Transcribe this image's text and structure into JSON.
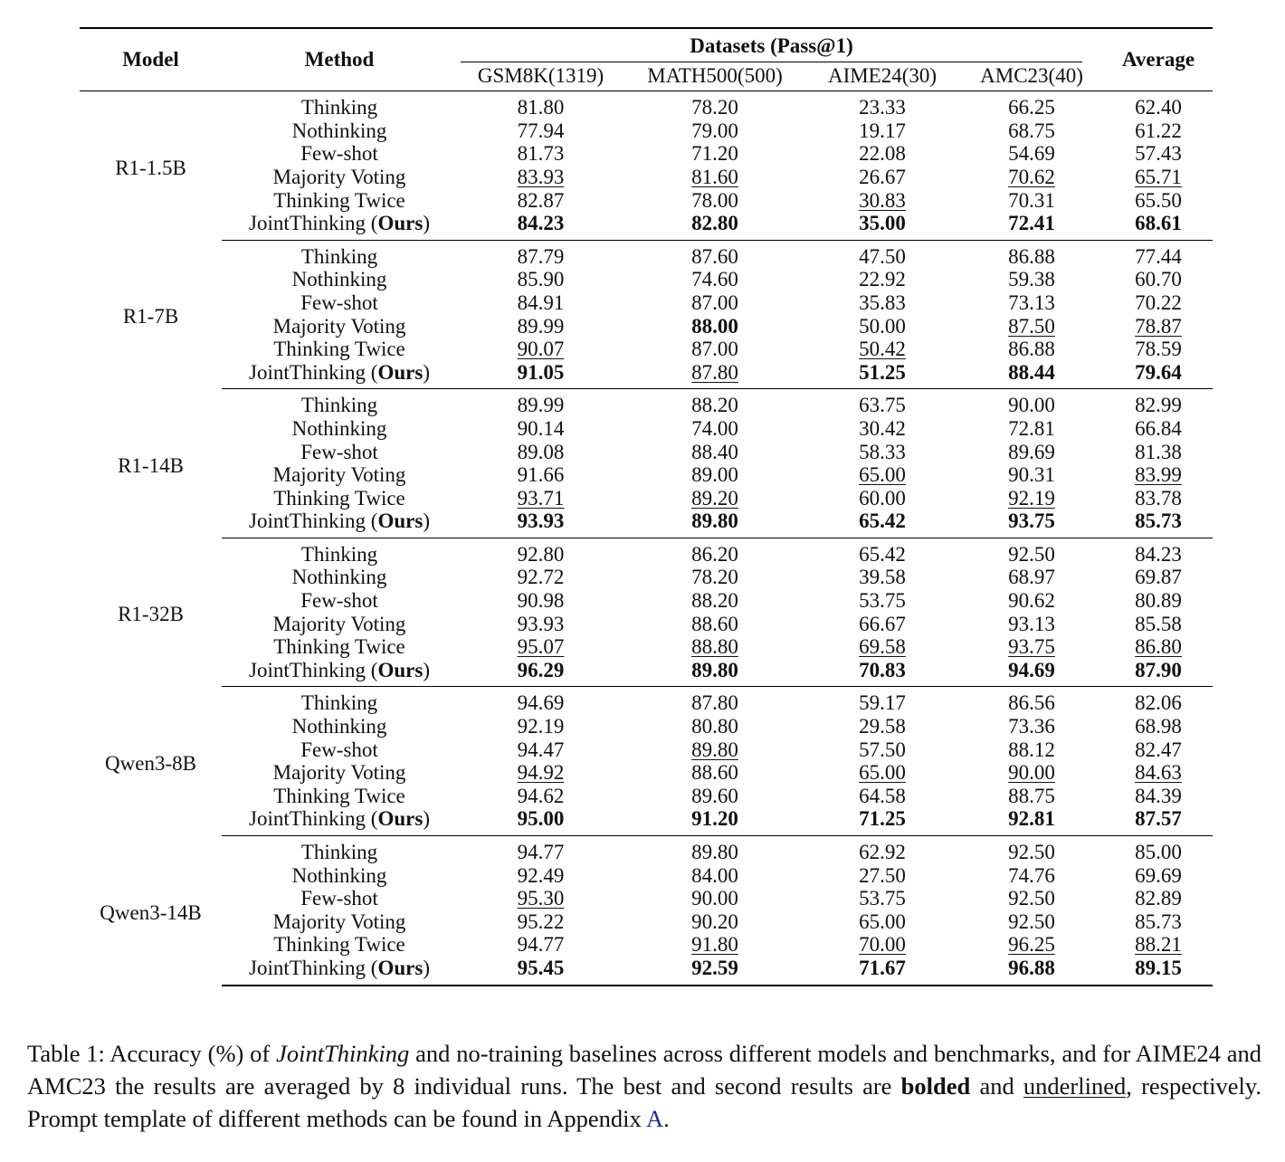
{
  "table": {
    "header": {
      "model": "Model",
      "method": "Method",
      "datasets": "Datasets (Pass@1)",
      "columns": [
        "GSM8K(1319)",
        "MATH500(500)",
        "AIME24(30)",
        "AMC23(40)"
      ],
      "average": "Average"
    },
    "groups": [
      {
        "model": "R1-1.5B",
        "rows": [
          {
            "method": "Thinking",
            "values": [
              "81.80",
              "78.20",
              "23.33",
              "66.25",
              "62.40"
            ]
          },
          {
            "method": "Nothinking",
            "values": [
              "77.94",
              "79.00",
              "19.17",
              "68.75",
              "61.22"
            ]
          },
          {
            "method": "Few-shot",
            "values": [
              "81.73",
              "71.20",
              "22.08",
              "54.69",
              "57.43"
            ]
          },
          {
            "method": "Majority Voting",
            "values": [
              {
                "text": "83.93",
                "style": "underline"
              },
              {
                "text": "81.60",
                "style": "underline"
              },
              "26.67",
              {
                "text": "70.62",
                "style": "underline"
              },
              {
                "text": "65.71",
                "style": "underline"
              }
            ]
          },
          {
            "method": "Thinking Twice",
            "values": [
              "82.87",
              "78.00",
              {
                "text": "30.83",
                "style": "underline"
              },
              "70.31",
              "65.50"
            ]
          },
          {
            "method": [
              "JointThinking (",
              {
                "text": "Ours",
                "style": "bold"
              },
              ")"
            ],
            "values": [
              {
                "text": "84.23",
                "style": "bold"
              },
              {
                "text": "82.80",
                "style": "bold"
              },
              {
                "text": "35.00",
                "style": "bold"
              },
              {
                "text": "72.41",
                "style": "bold"
              },
              {
                "text": "68.61",
                "style": "bold"
              }
            ]
          }
        ]
      },
      {
        "model": "R1-7B",
        "rows": [
          {
            "method": "Thinking",
            "values": [
              "87.79",
              "87.60",
              "47.50",
              "86.88",
              "77.44"
            ]
          },
          {
            "method": "Nothinking",
            "values": [
              "85.90",
              "74.60",
              "22.92",
              "59.38",
              "60.70"
            ]
          },
          {
            "method": "Few-shot",
            "values": [
              "84.91",
              "87.00",
              "35.83",
              "73.13",
              "70.22"
            ]
          },
          {
            "method": "Majority Voting",
            "values": [
              "89.99",
              {
                "text": "88.00",
                "style": "bold"
              },
              "50.00",
              {
                "text": "87.50",
                "style": "underline"
              },
              {
                "text": "78.87",
                "style": "underline"
              }
            ]
          },
          {
            "method": "Thinking Twice",
            "values": [
              {
                "text": "90.07",
                "style": "underline"
              },
              "87.00",
              {
                "text": "50.42",
                "style": "underline"
              },
              "86.88",
              "78.59"
            ]
          },
          {
            "method": [
              "JointThinking (",
              {
                "text": "Ours",
                "style": "bold"
              },
              ")"
            ],
            "values": [
              {
                "text": "91.05",
                "style": "bold"
              },
              {
                "text": "87.80",
                "style": "underline"
              },
              {
                "text": "51.25",
                "style": "bold"
              },
              {
                "text": "88.44",
                "style": "bold"
              },
              {
                "text": "79.64",
                "style": "bold"
              }
            ]
          }
        ]
      },
      {
        "model": "R1-14B",
        "rows": [
          {
            "method": "Thinking",
            "values": [
              "89.99",
              "88.20",
              "63.75",
              "90.00",
              "82.99"
            ]
          },
          {
            "method": "Nothinking",
            "values": [
              "90.14",
              "74.00",
              "30.42",
              "72.81",
              "66.84"
            ]
          },
          {
            "method": "Few-shot",
            "values": [
              "89.08",
              "88.40",
              "58.33",
              "89.69",
              "81.38"
            ]
          },
          {
            "method": "Majority Voting",
            "values": [
              "91.66",
              "89.00",
              {
                "text": "65.00",
                "style": "underline"
              },
              "90.31",
              {
                "text": "83.99",
                "style": "underline"
              }
            ]
          },
          {
            "method": "Thinking Twice",
            "values": [
              {
                "text": "93.71",
                "style": "underline"
              },
              {
                "text": "89.20",
                "style": "underline"
              },
              "60.00",
              {
                "text": "92.19",
                "style": "underline"
              },
              "83.78"
            ]
          },
          {
            "method": [
              "JointThinking (",
              {
                "text": "Ours",
                "style": "bold"
              },
              ")"
            ],
            "values": [
              {
                "text": "93.93",
                "style": "bold"
              },
              {
                "text": "89.80",
                "style": "bold"
              },
              {
                "text": "65.42",
                "style": "bold"
              },
              {
                "text": "93.75",
                "style": "bold"
              },
              {
                "text": "85.73",
                "style": "bold"
              }
            ]
          }
        ]
      },
      {
        "model": "R1-32B",
        "rows": [
          {
            "method": "Thinking",
            "values": [
              "92.80",
              "86.20",
              "65.42",
              "92.50",
              "84.23"
            ]
          },
          {
            "method": "Nothinking",
            "values": [
              "92.72",
              "78.20",
              "39.58",
              "68.97",
              "69.87"
            ]
          },
          {
            "method": "Few-shot",
            "values": [
              "90.98",
              "88.20",
              "53.75",
              "90.62",
              "80.89"
            ]
          },
          {
            "method": "Majority Voting",
            "values": [
              "93.93",
              "88.60",
              "66.67",
              "93.13",
              "85.58"
            ]
          },
          {
            "method": "Thinking Twice",
            "values": [
              {
                "text": "95.07",
                "style": "underline"
              },
              {
                "text": "88.80",
                "style": "underline"
              },
              {
                "text": "69.58",
                "style": "underline"
              },
              {
                "text": "93.75",
                "style": "underline"
              },
              {
                "text": "86.80",
                "style": "underline"
              }
            ]
          },
          {
            "method": [
              "JointThinking (",
              {
                "text": "Ours",
                "style": "bold"
              },
              ")"
            ],
            "values": [
              {
                "text": "96.29",
                "style": "bold"
              },
              {
                "text": "89.80",
                "style": "bold"
              },
              {
                "text": "70.83",
                "style": "bold"
              },
              {
                "text": "94.69",
                "style": "bold"
              },
              {
                "text": "87.90",
                "style": "bold"
              }
            ]
          }
        ]
      },
      {
        "model": "Qwen3-8B",
        "rows": [
          {
            "method": "Thinking",
            "values": [
              "94.69",
              "87.80",
              "59.17",
              "86.56",
              "82.06"
            ]
          },
          {
            "method": "Nothinking",
            "values": [
              "92.19",
              "80.80",
              "29.58",
              "73.36",
              "68.98"
            ]
          },
          {
            "method": "Few-shot",
            "values": [
              "94.47",
              {
                "text": "89.80",
                "style": "underline"
              },
              "57.50",
              "88.12",
              "82.47"
            ]
          },
          {
            "method": "Majority Voting",
            "values": [
              {
                "text": "94.92",
                "style": "underline"
              },
              "88.60",
              {
                "text": "65.00",
                "style": "underline"
              },
              {
                "text": "90.00",
                "style": "underline"
              },
              {
                "text": "84.63",
                "style": "underline"
              }
            ]
          },
          {
            "method": "Thinking Twice",
            "values": [
              "94.62",
              "89.60",
              "64.58",
              "88.75",
              "84.39"
            ]
          },
          {
            "method": [
              "JointThinking (",
              {
                "text": "Ours",
                "style": "bold"
              },
              ")"
            ],
            "values": [
              {
                "text": "95.00",
                "style": "bold"
              },
              {
                "text": "91.20",
                "style": "bold"
              },
              {
                "text": "71.25",
                "style": "bold"
              },
              {
                "text": "92.81",
                "style": "bold"
              },
              {
                "text": "87.57",
                "style": "bold"
              }
            ]
          }
        ]
      },
      {
        "model": "Qwen3-14B",
        "rows": [
          {
            "method": "Thinking",
            "values": [
              "94.77",
              "89.80",
              "62.92",
              "92.50",
              "85.00"
            ]
          },
          {
            "method": "Nothinking",
            "values": [
              "92.49",
              "84.00",
              "27.50",
              "74.76",
              "69.69"
            ]
          },
          {
            "method": "Few-shot",
            "values": [
              {
                "text": "95.30",
                "style": "underline"
              },
              "90.00",
              "53.75",
              "92.50",
              "82.89"
            ]
          },
          {
            "method": "Majority Voting",
            "values": [
              "95.22",
              "90.20",
              "65.00",
              "92.50",
              "85.73"
            ]
          },
          {
            "method": "Thinking Twice",
            "values": [
              "94.77",
              {
                "text": "91.80",
                "style": "underline"
              },
              {
                "text": "70.00",
                "style": "underline"
              },
              {
                "text": "96.25",
                "style": "underline"
              },
              {
                "text": "88.21",
                "style": "underline"
              }
            ]
          },
          {
            "method": [
              "JointThinking (",
              {
                "text": "Ours",
                "style": "bold"
              },
              ")"
            ],
            "values": [
              {
                "text": "95.45",
                "style": "bold"
              },
              {
                "text": "92.59",
                "style": "bold"
              },
              {
                "text": "71.67",
                "style": "bold"
              },
              {
                "text": "96.88",
                "style": "bold"
              },
              {
                "text": "89.15",
                "style": "bold"
              }
            ]
          }
        ]
      }
    ]
  },
  "caption": [
    "Table 1: Accuracy (%) of ",
    {
      "text": "JointThinking",
      "style": "italic"
    },
    " and no-training baselines across different models and benchmarks, and for AIME24 and AMC23 the results are averaged by 8 individual runs. The best and second results are ",
    {
      "text": "bolded",
      "style": "bold"
    },
    " and ",
    {
      "text": "underlined",
      "style": "underline"
    },
    ", respectively. Prompt template of different methods can be found in Appendix ",
    {
      "text": "A",
      "style": "link"
    },
    "."
  ]
}
